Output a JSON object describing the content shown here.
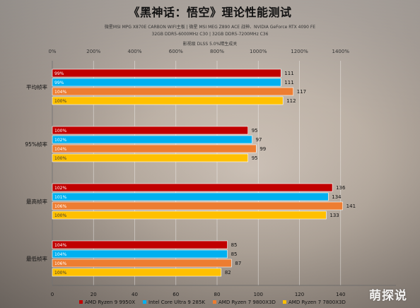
{
  "title": "《黑神话：悟空》理论性能测试",
  "subtitle_lines": [
    "微星MSI MPG X870E CARBON WIFI主板 | 微星 MSI MEG Z890 ACE 战神、NVIDIA GeForce RTX 4090 FE",
    "32GB DDR5-6000MHz C30 | 32GB DDR5-7200MHz C36",
    "影视级 DLSS 5.0%精生成关"
  ],
  "watermark": "萌探说",
  "chart_data": {
    "type": "bar",
    "orientation": "horizontal",
    "categories": [
      "平均帧率",
      "95%帧率",
      "最高帧率",
      "最低帧率"
    ],
    "top_axis": {
      "ticks": [
        "0%",
        "200%",
        "400%",
        "600%",
        "800%",
        "1000%",
        "1200%",
        "1400%"
      ]
    },
    "bottom_axis": {
      "min": 0,
      "max": 160,
      "ticks": [
        "0",
        "20",
        "40",
        "60",
        "80",
        "100",
        "120",
        "140"
      ]
    },
    "grid": true,
    "legend_position": "bottom",
    "series": [
      {
        "name": "AMD Ryzen 9 9950X",
        "color": "#c00000",
        "values": [
          111,
          95,
          136,
          85
        ],
        "percent_labels": [
          "99%",
          "100%",
          "102%",
          "104%"
        ]
      },
      {
        "name": "Intel Core Ultra 9 285K",
        "color": "#00b0f0",
        "values": [
          111,
          97,
          134,
          85
        ],
        "percent_labels": [
          "99%",
          "102%",
          "101%",
          "104%"
        ]
      },
      {
        "name": "AMD Ryzen 7 9800X3D",
        "color": "#ed7d31",
        "values": [
          117,
          99,
          141,
          87
        ],
        "percent_labels": [
          "104%",
          "104%",
          "106%",
          "106%"
        ]
      },
      {
        "name": "AMD Ryzen 7 7800X3D",
        "color": "#ffc000",
        "values": [
          112,
          95,
          133,
          82
        ],
        "percent_labels": [
          "100%",
          "100%",
          "100%",
          "100%"
        ]
      }
    ]
  }
}
